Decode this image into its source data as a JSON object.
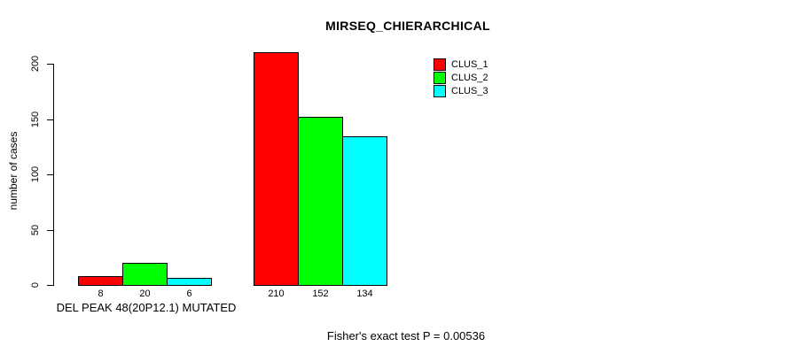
{
  "chart_data": {
    "type": "bar",
    "title": "MIRSEQ_CHIERARCHICAL",
    "xlabel": "DEL PEAK 48(20P12.1) MUTATED",
    "ylabel": "number of cases",
    "footnote": "Fisher's exact test P = 0.00536",
    "ylim": [
      0,
      200
    ],
    "yticks": [
      0,
      50,
      100,
      150,
      200
    ],
    "grid": false,
    "background": "#ffffff",
    "legend_position": "top-right",
    "categories": [
      "DEL PEAK 48(20P12.1) MUTATED",
      ""
    ],
    "series": [
      {
        "name": "CLUS_1",
        "color": "#ff0000",
        "values": [
          8,
          210
        ]
      },
      {
        "name": "CLUS_2",
        "color": "#00ff00",
        "values": [
          20,
          152
        ]
      },
      {
        "name": "CLUS_3",
        "color": "#00ffff",
        "values": [
          6,
          134
        ]
      }
    ],
    "bar_value_labels": [
      [
        8,
        20,
        6
      ],
      [
        210,
        152,
        134
      ]
    ]
  }
}
